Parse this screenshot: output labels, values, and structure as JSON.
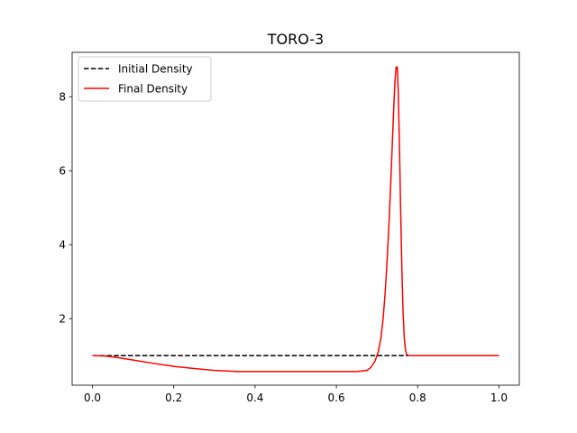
{
  "chart_data": {
    "type": "line",
    "title": "TORO-3",
    "xlabel": "",
    "ylabel": "",
    "xlim": [
      -0.05,
      1.05
    ],
    "ylim": [
      0.2,
      9.2
    ],
    "xticks": [
      0.0,
      0.2,
      0.4,
      0.6,
      0.8,
      1.0
    ],
    "xtick_labels": [
      "0.0",
      "0.2",
      "0.4",
      "0.6",
      "0.8",
      "1.0"
    ],
    "yticks": [
      2,
      4,
      6,
      8
    ],
    "ytick_labels": [
      "2",
      "4",
      "6",
      "8"
    ],
    "grid": false,
    "legend_position": "upper-left",
    "series": [
      {
        "name": "Initial Density",
        "color": "#000000",
        "style": "dashed",
        "x": [
          0.0,
          1.0
        ],
        "y": [
          1.0,
          1.0
        ]
      },
      {
        "name": "Final Density",
        "color": "#ff0000",
        "style": "solid",
        "x": [
          0.0,
          0.03,
          0.06,
          0.1,
          0.15,
          0.2,
          0.25,
          0.3,
          0.36,
          0.45,
          0.55,
          0.65,
          0.675,
          0.685,
          0.695,
          0.703,
          0.71,
          0.715,
          0.72,
          0.725,
          0.73,
          0.735,
          0.74,
          0.744,
          0.747,
          0.75,
          0.752,
          0.755,
          0.758,
          0.761,
          0.764,
          0.767,
          0.77,
          0.773,
          0.777,
          0.8,
          0.9,
          1.0
        ],
        "y": [
          1.0,
          0.99,
          0.95,
          0.88,
          0.79,
          0.71,
          0.65,
          0.6,
          0.57,
          0.57,
          0.57,
          0.57,
          0.6,
          0.68,
          0.85,
          1.1,
          1.5,
          2.0,
          2.7,
          3.6,
          4.7,
          6.0,
          7.4,
          8.4,
          8.8,
          8.8,
          8.2,
          6.8,
          5.0,
          3.4,
          2.2,
          1.5,
          1.15,
          1.03,
          1.0,
          1.0,
          1.0,
          1.0
        ]
      }
    ]
  }
}
